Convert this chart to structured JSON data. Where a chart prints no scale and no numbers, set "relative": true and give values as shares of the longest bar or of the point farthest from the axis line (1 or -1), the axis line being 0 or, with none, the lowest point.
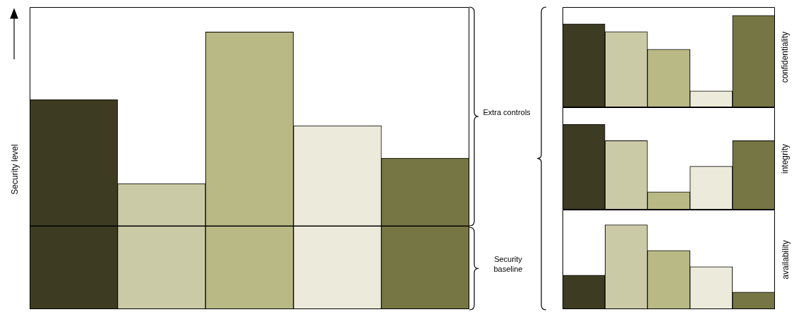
{
  "chart_data": [
    {
      "type": "bar",
      "relative": true,
      "ylabel": "Security level",
      "categories": [
        null,
        null,
        null,
        null,
        null
      ],
      "values": [
        0.756,
        0.453,
        1,
        0.662,
        0.545
      ],
      "colors": [
        "#3d3b22",
        "#cbcaa6",
        "#b8b985",
        "#ecebdb",
        "#767645"
      ],
      "ref_lines": [
        {
          "axis": "y",
          "value": 0.3,
          "color": "#000000"
        }
      ],
      "annotations": [
        "Extra controls",
        "Security baseline"
      ],
      "legend": false
    },
    {
      "type": "bar",
      "relative": true,
      "ylabel": "confidentiality",
      "categories": [
        null,
        null,
        null,
        null,
        null
      ],
      "values": [
        0.908,
        0.823,
        0.631,
        0.177,
        1
      ],
      "colors": [
        "#3d3b22",
        "#cbcaa6",
        "#b8b985",
        "#ecebdb",
        "#767645"
      ],
      "legend": false
    },
    {
      "type": "bar",
      "relative": true,
      "ylabel": "integrity",
      "categories": [
        null,
        null,
        null,
        null,
        null
      ],
      "values": [
        1,
        0.808,
        0.208,
        0.508,
        0.808
      ],
      "colors": [
        "#3d3b22",
        "#cbcaa6",
        "#b8b985",
        "#ecebdb",
        "#767645"
      ],
      "legend": false
    },
    {
      "type": "bar",
      "relative": true,
      "ylabel": "availability",
      "categories": [
        null,
        null,
        null,
        null,
        null
      ],
      "values": [
        0.403,
        1,
        0.697,
        0.504,
        0.202
      ],
      "colors": [
        "#3d3b22",
        "#cbcaa6",
        "#b8b985",
        "#ecebdb",
        "#767645"
      ],
      "legend": false
    }
  ]
}
